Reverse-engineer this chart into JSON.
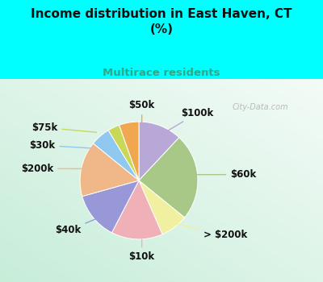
{
  "title": "Income distribution in East Haven, CT\n(%)",
  "subtitle": "Multirace residents",
  "subtitle_color": "#2aaa88",
  "title_color": "#111111",
  "background_color": "#00ffff",
  "watermark": "© City-Data.com",
  "slices": [
    {
      "label": "$100k",
      "value": 11,
      "color": "#b8a8d8"
    },
    {
      "label": "$60k",
      "value": 22,
      "color": "#a8c888"
    },
    {
      "label": "> $200k",
      "value": 7,
      "color": "#f0f0a0"
    },
    {
      "label": "$10k",
      "value": 13,
      "color": "#f0b0b8"
    },
    {
      "label": "$40k",
      "value": 12,
      "color": "#9898d8"
    },
    {
      "label": "$200k",
      "value": 14,
      "color": "#f0b888"
    },
    {
      "label": "$30k",
      "value": 5,
      "color": "#90c8f0"
    },
    {
      "label": "$75k",
      "value": 3,
      "color": "#c8d858"
    },
    {
      "label": "$50k",
      "value": 5,
      "color": "#f0a850"
    }
  ],
  "label_fontsize": 8.5,
  "title_fontsize": 11
}
